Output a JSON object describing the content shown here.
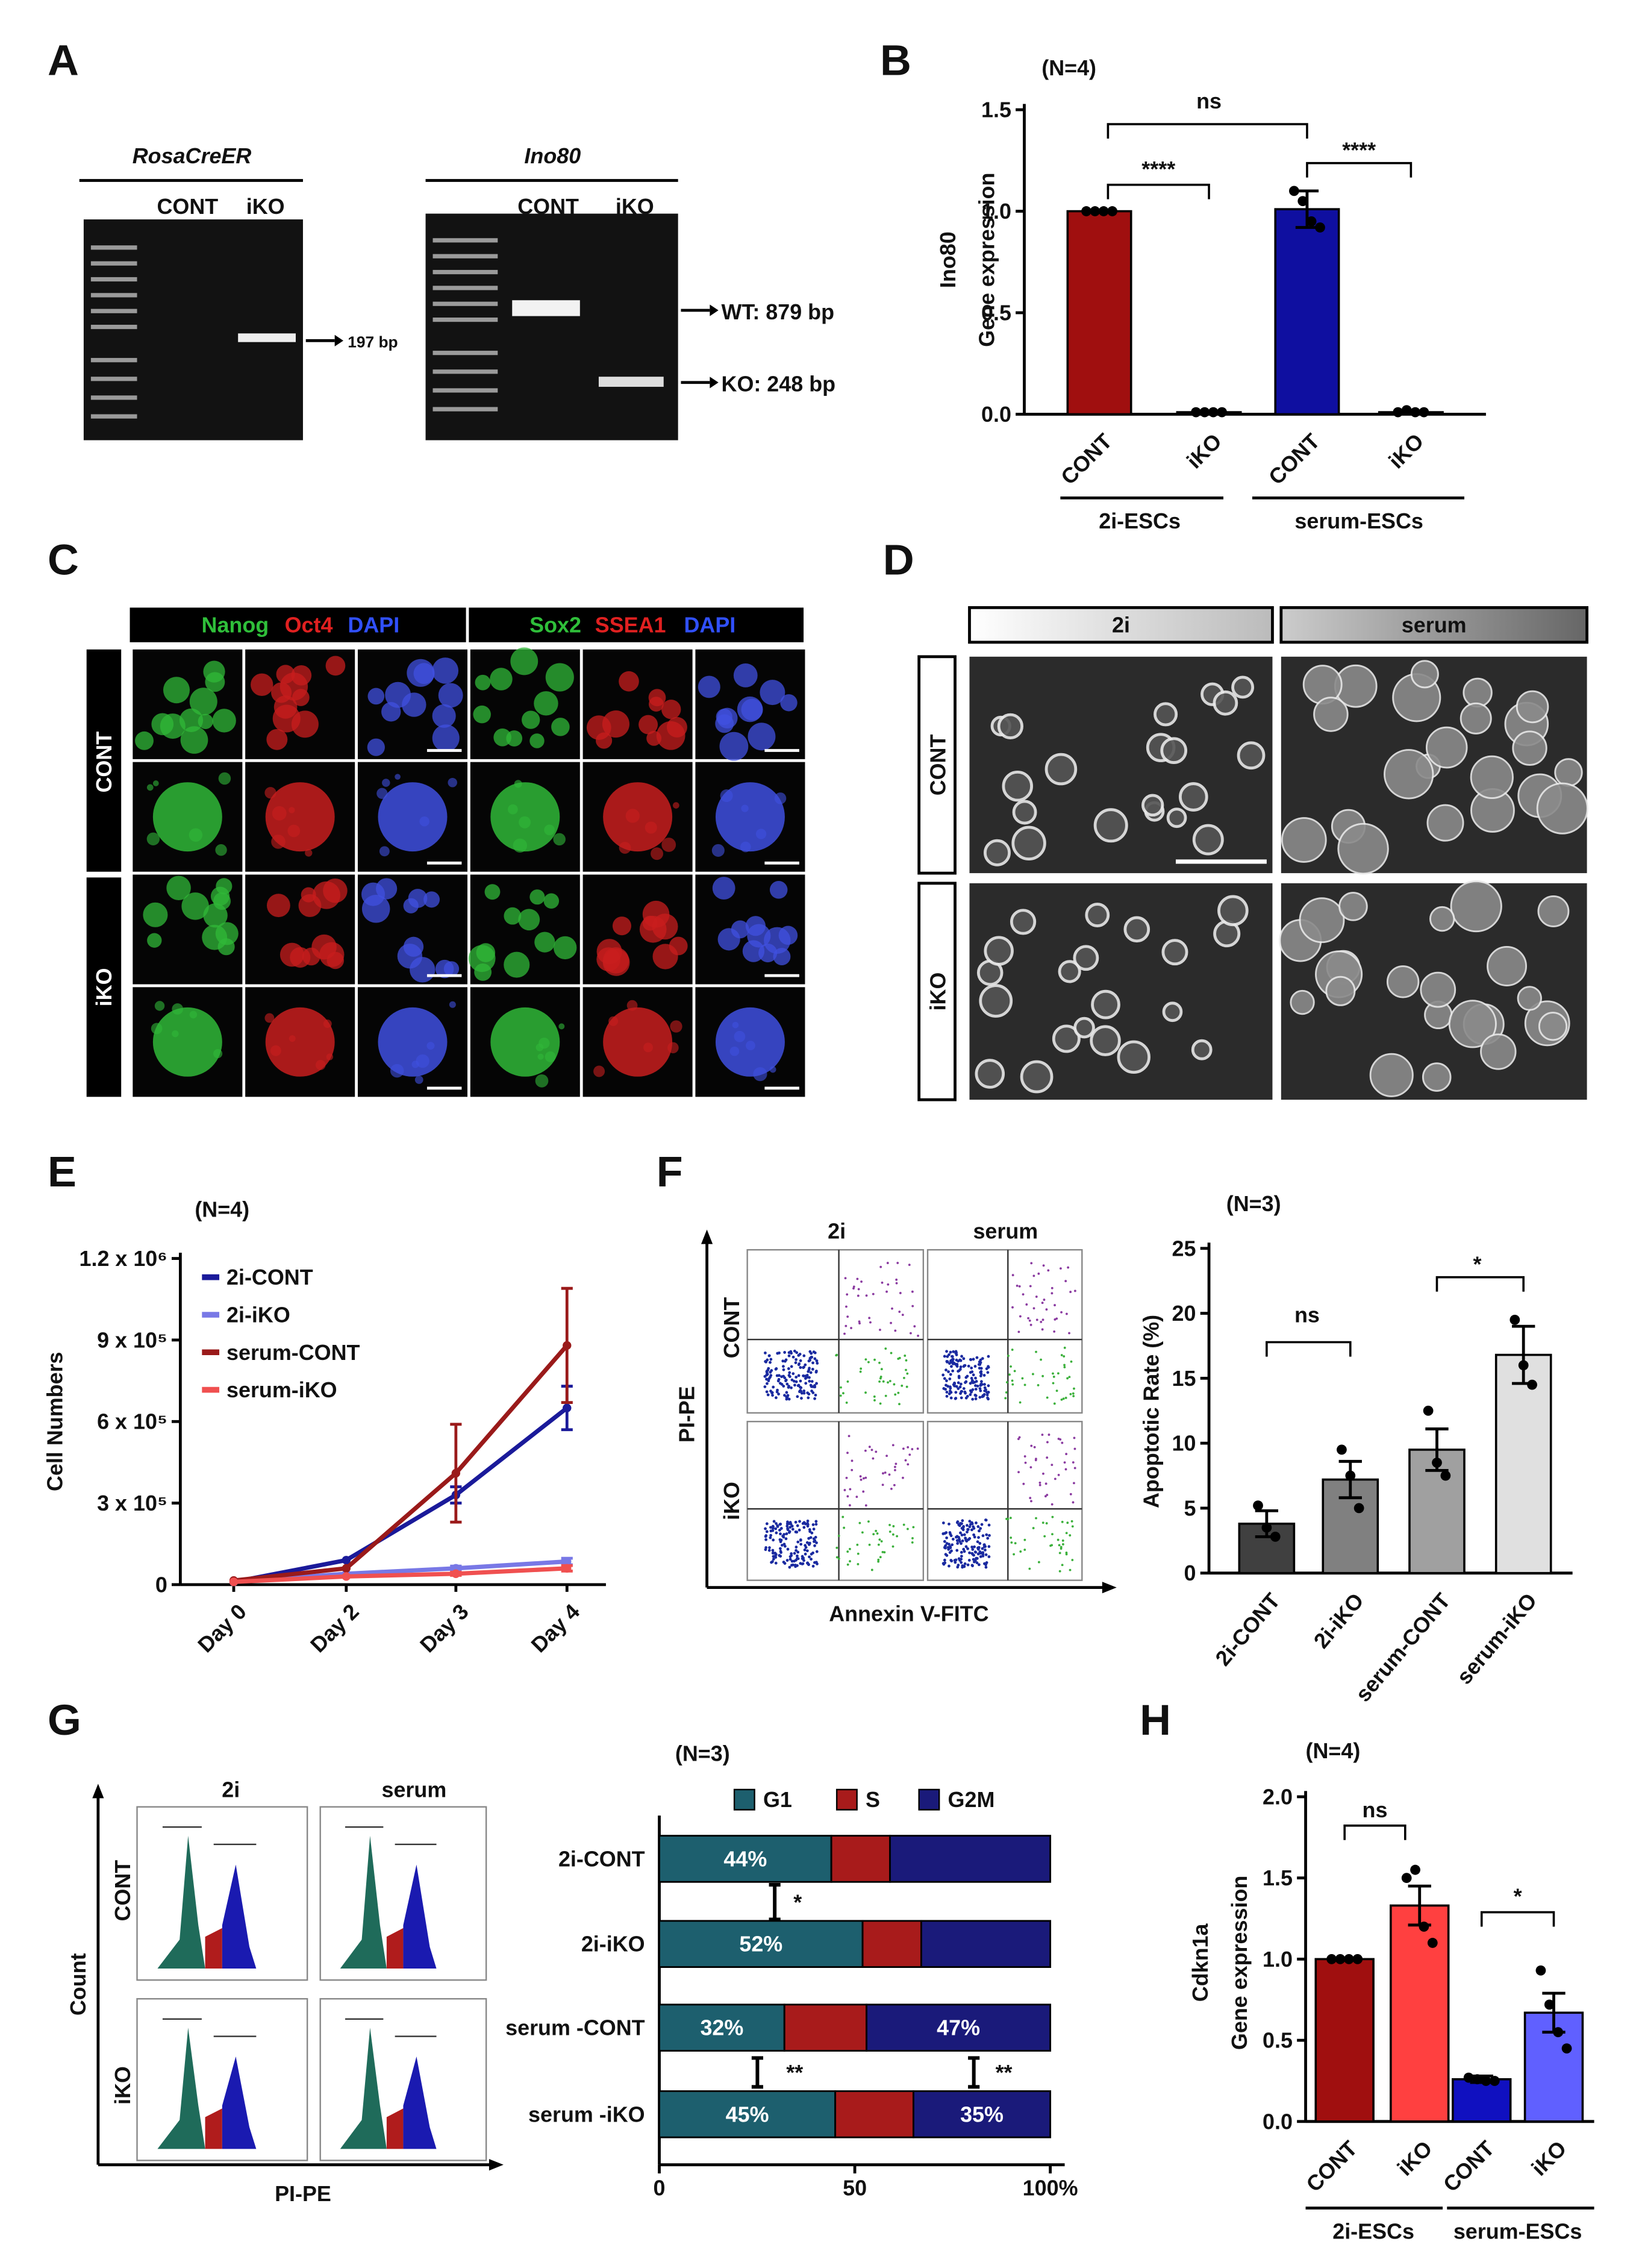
{
  "chart_data": [
    {
      "type": "bar",
      "panel": "B",
      "note": "(N=4)",
      "y_label": [
        "Ino80",
        "Gene expression"
      ],
      "categories": [
        "CONT",
        "iKO",
        "CONT",
        "iKO"
      ],
      "groups": [
        "2i-ESCs",
        "serum-ESCs"
      ],
      "values": [
        1.0,
        0.01,
        1.01,
        0.01
      ],
      "errors": [
        0,
        0,
        0.09,
        0.005
      ],
      "points": [
        [
          1,
          1,
          1,
          1
        ],
        [
          0.01,
          0.01,
          0.01,
          0.01
        ],
        [
          1.1,
          1.05,
          0.95,
          0.92
        ],
        [
          0.01,
          0.02,
          0.01,
          0.01
        ]
      ],
      "colors": [
        "#a00f0f",
        "#a00f0f",
        "#0f0fa0",
        "#0f0fa0"
      ],
      "ylim": [
        0,
        1.5
      ],
      "yticks": [
        {
          "value": 0,
          "label": "0.0"
        },
        {
          "value": 0.5,
          "label": "0.5"
        },
        {
          "value": 1,
          "label": "1.0"
        },
        {
          "value": 1.5,
          "label": "1.5"
        }
      ],
      "annotations": [
        "ns",
        "****",
        "****"
      ]
    },
    {
      "type": "line",
      "panel": "E",
      "note": "(N=4)",
      "y_label": [
        "Cell Numbers"
      ],
      "categories": [
        "Day 0",
        "Day 2",
        "Day 3",
        "Day 4"
      ],
      "series": [
        {
          "name": "2i-CONT",
          "color": "#1a1a9a",
          "values": [
            10000,
            90000,
            330000,
            650000
          ],
          "errors": [
            0,
            0,
            30000,
            80000
          ]
        },
        {
          "name": "2i-iKO",
          "color": "#7878e6",
          "values": [
            10000,
            40000,
            60000,
            85000
          ],
          "errors": [
            0,
            0,
            8000,
            12000
          ]
        },
        {
          "name": "serum-CONT",
          "color": "#9a1a1a",
          "values": [
            15000,
            60000,
            410000,
            880000
          ],
          "errors": [
            0,
            0,
            180000,
            210000
          ]
        },
        {
          "name": "serum-iKO",
          "color": "#f05050",
          "values": [
            10000,
            30000,
            40000,
            60000
          ],
          "errors": [
            0,
            0,
            6000,
            10000
          ]
        }
      ],
      "ylim": [
        0,
        1200000
      ],
      "yticks": [
        0,
        {
          "value": 300000,
          "label": "3 x 10⁵"
        },
        {
          "value": 600000,
          "label": "6 x 10⁵"
        },
        {
          "value": 900000,
          "label": "9 x 10⁵"
        },
        {
          "value": 1200000,
          "label": "1.2 x 10⁶"
        }
      ]
    },
    {
      "type": "bar",
      "panel": "F",
      "note": "(N=3)",
      "y_label": [
        "Apoptotic Rate (%)"
      ],
      "categories": [
        "2i-CONT",
        "2i-iKO",
        "serum-CONT",
        "serum-iKO"
      ],
      "values": [
        3.8,
        7.2,
        9.5,
        16.8
      ],
      "errors": [
        1.0,
        1.4,
        1.6,
        2.2
      ],
      "points": [
        [
          5.2,
          3.5,
          2.8
        ],
        [
          9.5,
          7.5,
          5
        ],
        [
          12.5,
          8.5,
          7.5
        ],
        [
          19.5,
          16,
          14.5
        ]
      ],
      "colors": [
        "#404040",
        "#808080",
        "#a0a0a0",
        "#e0e0e0"
      ],
      "ylim": [
        0,
        25
      ],
      "yticks": [
        0,
        5,
        10,
        15,
        20,
        25
      ],
      "annotations": [
        "ns",
        "*"
      ]
    },
    {
      "type": "stacked-bar",
      "panel": "G",
      "note": "(N=3)",
      "categories": [
        "2i-CONT",
        "2i-iKO",
        "serum -CONT",
        "serum -iKO"
      ],
      "series": [
        {
          "name": "G1",
          "color": "#1d5f6e",
          "values": [
            44,
            52,
            32,
            45
          ],
          "value_labels": [
            "44%",
            "52%",
            "32%",
            "45%"
          ]
        },
        {
          "name": "S",
          "color": "#a81b1b",
          "values": [
            15,
            15,
            21,
            20
          ]
        },
        {
          "name": "G2M",
          "color": "#1a1a7a",
          "values": [
            41,
            33,
            47,
            35
          ],
          "value_labels": [
            null,
            null,
            "47%",
            "35%"
          ]
        }
      ],
      "xlim": [
        0,
        100
      ],
      "xticks": [
        0,
        50,
        {
          "value": 100,
          "label": "100%"
        }
      ],
      "annotations": [
        "*",
        "**",
        "**"
      ]
    },
    {
      "type": "bar",
      "panel": "H",
      "note": "(N=4)",
      "y_label": [
        "Cdkn1a",
        "Gene expression"
      ],
      "categories": [
        "CONT",
        "iKO",
        "CONT",
        "iKO"
      ],
      "groups": [
        "2i-ESCs",
        "serum-ESCs"
      ],
      "values": [
        1.0,
        1.33,
        0.26,
        0.67
      ],
      "errors": [
        0,
        0.12,
        0.02,
        0.12
      ],
      "points": [
        [
          1,
          1,
          1,
          1
        ],
        [
          1.5,
          1.55,
          1.2,
          1.1
        ],
        [
          0.27,
          0.26,
          0.25,
          0.25
        ],
        [
          0.93,
          0.72,
          0.55,
          0.45
        ]
      ],
      "colors": [
        "#a00f0f",
        "#ff4040",
        "#1010c0",
        "#6060ff"
      ],
      "ylim": [
        0,
        2
      ],
      "yticks": [
        {
          "value": 0,
          "label": "0.0"
        },
        {
          "value": 0.5,
          "label": "0.5"
        },
        {
          "value": 1,
          "label": "1.0"
        },
        {
          "value": 1.5,
          "label": "1.5"
        },
        {
          "value": 2,
          "label": "2.0"
        }
      ],
      "annotations": [
        "ns",
        "*"
      ]
    }
  ],
  "figure": {
    "panel_labels": [
      "A",
      "C",
      "D"
    ],
    "gel": {
      "left_title": "RosaCreER",
      "right_title": "Ino80",
      "lanes": [
        "CONT",
        "iKO"
      ],
      "left_band": "197 bp",
      "wt_band": "WT: 879 bp",
      "ko_band": "KO: 248 bp"
    },
    "immuno": {
      "header1": [
        "Nanog",
        "Oct4",
        "DAPI"
      ],
      "header2": [
        "Sox2",
        "SSEA1",
        "DAPI"
      ],
      "rows": [
        "CONT",
        "iKO"
      ]
    },
    "morphology": {
      "columns": [
        "2i",
        "serum"
      ],
      "rows": [
        "CONT",
        "iKO"
      ]
    },
    "apoptosis_flow": {
      "columns": [
        "2i",
        "serum"
      ],
      "rows": [
        "CONT",
        "iKO"
      ],
      "y_label": "PI-PE",
      "x_label": "Annexin V-FITC"
    },
    "cycle_flow": {
      "columns": [
        "2i",
        "serum"
      ],
      "rows": [
        "CONT",
        "iKO"
      ],
      "y_label": "Count",
      "x_label": "PI-PE"
    }
  }
}
